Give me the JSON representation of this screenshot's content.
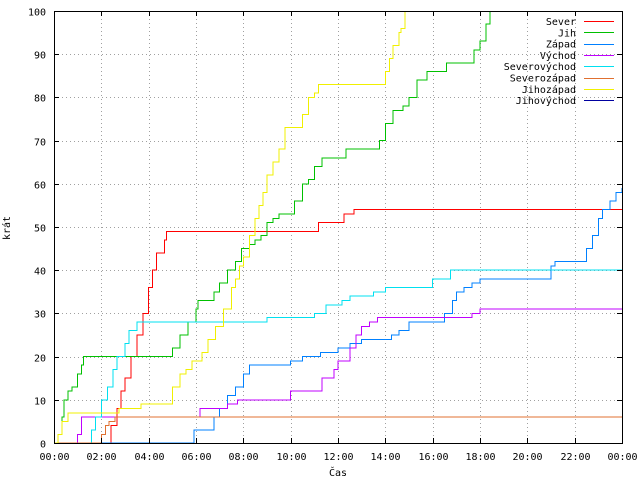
{
  "chart_data": {
    "type": "line",
    "title": "",
    "xlabel": "Čas",
    "ylabel": "krát",
    "xlim": [
      "00:00",
      "24:00"
    ],
    "ylim": [
      0,
      100
    ],
    "grid": true,
    "legend_position": "top-right",
    "x_tick_labels": [
      "00:00",
      "02:00",
      "04:00",
      "06:00",
      "08:00",
      "10:00",
      "12:00",
      "14:00",
      "16:00",
      "18:00",
      "20:00",
      "22:00",
      "00:00"
    ],
    "y_tick_labels": [
      "0",
      "10",
      "20",
      "30",
      "40",
      "50",
      "60",
      "70",
      "80",
      "90",
      "100"
    ],
    "series": [
      {
        "name": "Sever",
        "color": "#ff0000",
        "points": [
          [
            "00:00",
            0
          ],
          [
            "02:00",
            0
          ],
          [
            "02:25",
            4
          ],
          [
            "02:40",
            8
          ],
          [
            "02:50",
            12
          ],
          [
            "03:00",
            15
          ],
          [
            "03:15",
            20
          ],
          [
            "03:30",
            25
          ],
          [
            "03:45",
            30
          ],
          [
            "04:00",
            36
          ],
          [
            "04:10",
            40
          ],
          [
            "04:20",
            44
          ],
          [
            "04:40",
            47
          ],
          [
            "04:45",
            49
          ],
          [
            "11:00",
            49
          ],
          [
            "11:10",
            51
          ],
          [
            "12:05",
            51
          ],
          [
            "12:15",
            53
          ],
          [
            "12:35",
            53
          ],
          [
            "12:40",
            54
          ],
          [
            "24:00",
            54
          ]
        ]
      },
      {
        "name": "Jih",
        "color": "#00c000",
        "points": [
          [
            "00:00",
            0
          ],
          [
            "00:10",
            2
          ],
          [
            "00:20",
            6
          ],
          [
            "00:25",
            10
          ],
          [
            "00:35",
            12
          ],
          [
            "00:45",
            13
          ],
          [
            "01:00",
            16
          ],
          [
            "01:10",
            18
          ],
          [
            "01:15",
            20
          ],
          [
            "04:45",
            20
          ],
          [
            "05:00",
            22
          ],
          [
            "05:20",
            25
          ],
          [
            "05:40",
            28
          ],
          [
            "06:00",
            31
          ],
          [
            "06:05",
            33
          ],
          [
            "06:40",
            33
          ],
          [
            "06:45",
            35
          ],
          [
            "07:00",
            37
          ],
          [
            "07:20",
            40
          ],
          [
            "07:40",
            42
          ],
          [
            "07:55",
            45
          ],
          [
            "08:15",
            46
          ],
          [
            "08:30",
            47
          ],
          [
            "08:45",
            48
          ],
          [
            "09:00",
            51
          ],
          [
            "09:15",
            52
          ],
          [
            "09:30",
            53
          ],
          [
            "10:00",
            53
          ],
          [
            "10:10",
            56
          ],
          [
            "10:30",
            60
          ],
          [
            "10:45",
            61
          ],
          [
            "11:00",
            64
          ],
          [
            "11:20",
            66
          ],
          [
            "12:00",
            66
          ],
          [
            "12:20",
            68
          ],
          [
            "13:30",
            68
          ],
          [
            "13:45",
            70
          ],
          [
            "14:00",
            74
          ],
          [
            "14:20",
            77
          ],
          [
            "14:45",
            78
          ],
          [
            "15:00",
            80
          ],
          [
            "15:20",
            84
          ],
          [
            "15:45",
            86
          ],
          [
            "16:20",
            86
          ],
          [
            "16:35",
            88
          ],
          [
            "17:35",
            88
          ],
          [
            "17:45",
            91
          ],
          [
            "18:00",
            93
          ],
          [
            "18:15",
            97
          ],
          [
            "18:25",
            100
          ]
        ]
      },
      {
        "name": "Západ",
        "color": "#0080ff",
        "points": [
          [
            "00:00",
            0
          ],
          [
            "05:50",
            0
          ],
          [
            "05:55",
            3
          ],
          [
            "06:40",
            3
          ],
          [
            "06:45",
            6
          ],
          [
            "07:00",
            8
          ],
          [
            "07:20",
            11
          ],
          [
            "07:40",
            13
          ],
          [
            "08:00",
            16
          ],
          [
            "08:15",
            18
          ],
          [
            "09:45",
            18
          ],
          [
            "10:00",
            19
          ],
          [
            "10:30",
            20
          ],
          [
            "11:15",
            21
          ],
          [
            "12:00",
            22
          ],
          [
            "12:30",
            23
          ],
          [
            "13:00",
            24
          ],
          [
            "14:15",
            25
          ],
          [
            "14:35",
            26
          ],
          [
            "15:00",
            28
          ],
          [
            "16:10",
            28
          ],
          [
            "16:30",
            30
          ],
          [
            "16:50",
            33
          ],
          [
            "17:00",
            35
          ],
          [
            "17:20",
            36
          ],
          [
            "17:40",
            37
          ],
          [
            "18:00",
            38
          ],
          [
            "20:30",
            38
          ],
          [
            "21:00",
            41
          ],
          [
            "21:10",
            42
          ],
          [
            "22:00",
            42
          ],
          [
            "22:30",
            45
          ],
          [
            "22:45",
            48
          ],
          [
            "23:00",
            52
          ],
          [
            "23:10",
            54
          ],
          [
            "23:30",
            56
          ],
          [
            "23:45",
            58
          ],
          [
            "24:00",
            59
          ]
        ]
      },
      {
        "name": "Východ",
        "color": "#c000ff",
        "points": [
          [
            "00:00",
            0
          ],
          [
            "00:55",
            0
          ],
          [
            "01:00",
            2
          ],
          [
            "01:10",
            6
          ],
          [
            "06:00",
            6
          ],
          [
            "06:10",
            8
          ],
          [
            "07:20",
            9
          ],
          [
            "07:45",
            10
          ],
          [
            "09:50",
            10
          ],
          [
            "10:00",
            12
          ],
          [
            "11:00",
            12
          ],
          [
            "11:20",
            15
          ],
          [
            "11:50",
            17
          ],
          [
            "12:00",
            19
          ],
          [
            "12:30",
            22
          ],
          [
            "12:45",
            25
          ],
          [
            "13:00",
            27
          ],
          [
            "13:20",
            28
          ],
          [
            "13:40",
            29
          ],
          [
            "17:20",
            29
          ],
          [
            "17:40",
            30
          ],
          [
            "18:00",
            31
          ],
          [
            "24:00",
            31
          ]
        ]
      },
      {
        "name": "Severovýchod",
        "color": "#00e0f0",
        "points": [
          [
            "00:00",
            0
          ],
          [
            "01:25",
            0
          ],
          [
            "01:35",
            3
          ],
          [
            "01:45",
            6
          ],
          [
            "02:00",
            10
          ],
          [
            "02:15",
            13
          ],
          [
            "02:30",
            17
          ],
          [
            "02:40",
            20
          ],
          [
            "03:00",
            23
          ],
          [
            "03:10",
            26
          ],
          [
            "03:30",
            28
          ],
          [
            "08:55",
            28
          ],
          [
            "09:00",
            29
          ],
          [
            "11:00",
            30
          ],
          [
            "11:30",
            32
          ],
          [
            "12:10",
            33
          ],
          [
            "12:30",
            34
          ],
          [
            "13:30",
            35
          ],
          [
            "14:00",
            36
          ],
          [
            "15:40",
            36
          ],
          [
            "16:00",
            38
          ],
          [
            "16:45",
            40
          ],
          [
            "24:00",
            40
          ]
        ]
      },
      {
        "name": "Severozápad",
        "color": "#e07030",
        "points": [
          [
            "00:00",
            0
          ],
          [
            "01:50",
            0
          ],
          [
            "02:00",
            2
          ],
          [
            "02:10",
            4
          ],
          [
            "02:20",
            5
          ],
          [
            "02:35",
            6
          ],
          [
            "03:45",
            6
          ],
          [
            "24:00",
            6
          ]
        ]
      },
      {
        "name": "Jihozápad",
        "color": "#f0f000",
        "points": [
          [
            "00:00",
            0
          ],
          [
            "00:10",
            2
          ],
          [
            "00:20",
            5
          ],
          [
            "00:35",
            7
          ],
          [
            "02:40",
            7
          ],
          [
            "02:45",
            8
          ],
          [
            "03:30",
            8
          ],
          [
            "03:40",
            9
          ],
          [
            "04:50",
            9
          ],
          [
            "05:00",
            13
          ],
          [
            "05:20",
            16
          ],
          [
            "05:35",
            17
          ],
          [
            "05:50",
            19
          ],
          [
            "06:15",
            21
          ],
          [
            "06:30",
            24
          ],
          [
            "06:50",
            27
          ],
          [
            "07:10",
            31
          ],
          [
            "07:30",
            36
          ],
          [
            "07:40",
            38
          ],
          [
            "07:50",
            41
          ],
          [
            "08:00",
            43
          ],
          [
            "08:15",
            48
          ],
          [
            "08:30",
            52
          ],
          [
            "08:40",
            55
          ],
          [
            "08:50",
            58
          ],
          [
            "09:00",
            62
          ],
          [
            "09:15",
            65
          ],
          [
            "09:30",
            68
          ],
          [
            "09:45",
            73
          ],
          [
            "10:15",
            73
          ],
          [
            "10:30",
            76
          ],
          [
            "10:45",
            80
          ],
          [
            "11:00",
            81
          ],
          [
            "11:10",
            83
          ],
          [
            "13:50",
            83
          ],
          [
            "14:00",
            86
          ],
          [
            "14:10",
            89
          ],
          [
            "14:20",
            92
          ],
          [
            "14:35",
            95
          ],
          [
            "14:40",
            96
          ],
          [
            "14:50",
            100
          ]
        ]
      },
      {
        "name": "Jihovýchod",
        "color": "#0000a0",
        "points": []
      }
    ]
  }
}
